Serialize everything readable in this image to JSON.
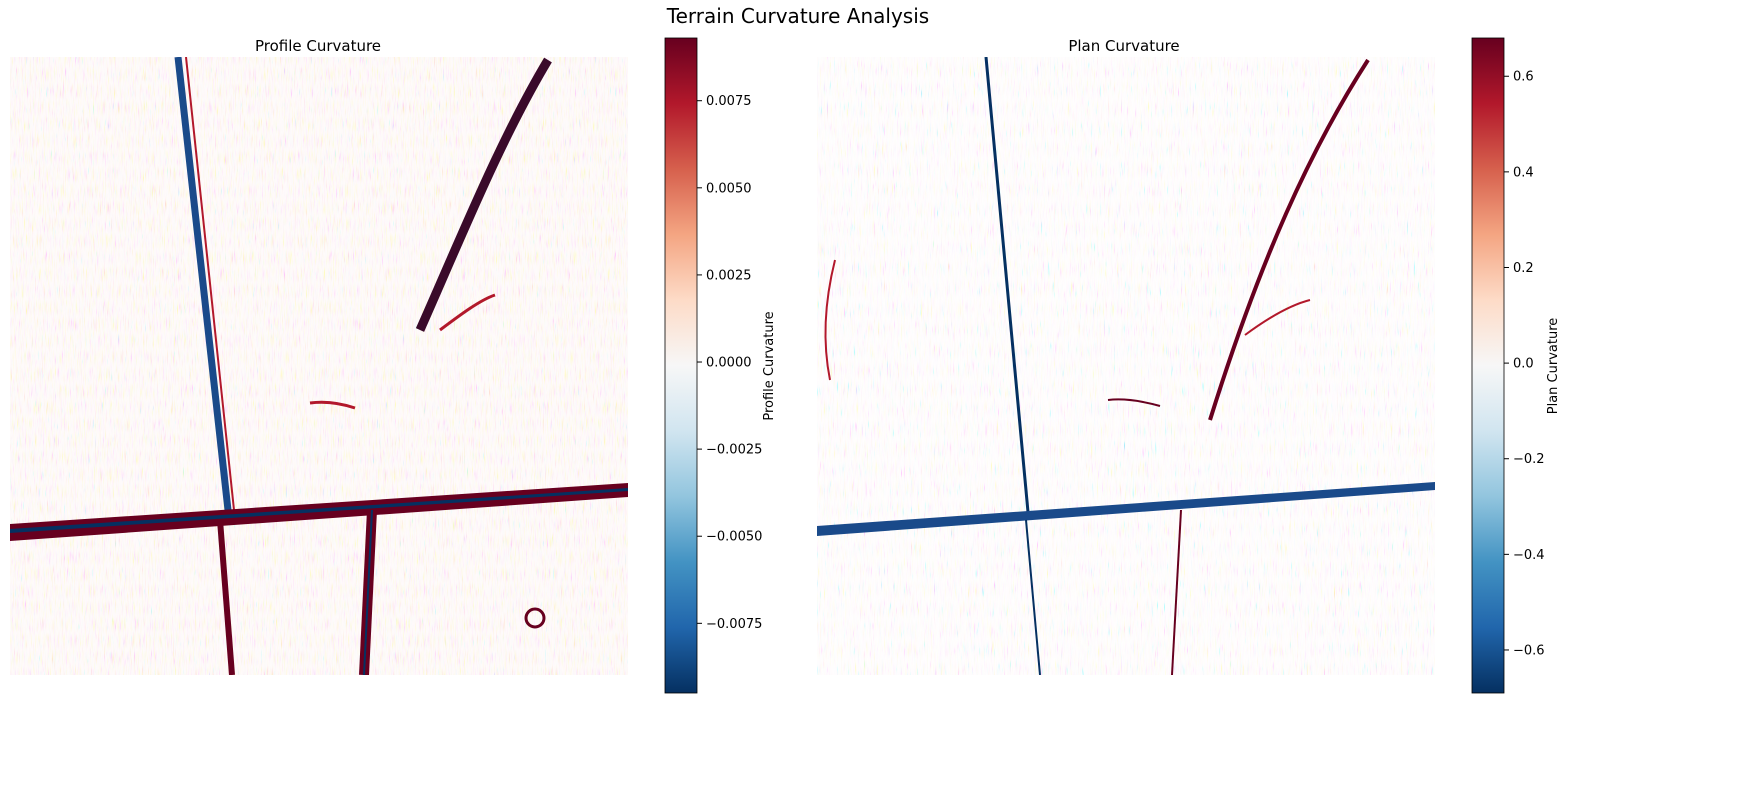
{
  "figure": {
    "title": "Terrain Curvature Analysis"
  },
  "colors": {
    "cmap": [
      "#053061",
      "#2166ac",
      "#4393c3",
      "#92c5de",
      "#d1e5f0",
      "#f7f7f7",
      "#fddbc7",
      "#f4a582",
      "#d6604d",
      "#b2182b",
      "#67001f"
    ],
    "tick_text": "#000000",
    "axis_frame": "#000000"
  },
  "chart_data": [
    {
      "type": "heatmap",
      "title": "Profile Curvature",
      "colormap": "RdBu_r",
      "colorbar": {
        "label": "Profile Curvature",
        "range": [
          -0.0095,
          0.0093
        ],
        "ticks": [
          0.0075,
          0.005,
          0.0025,
          0.0,
          -0.0025,
          -0.005,
          -0.0075
        ],
        "tick_labels": [
          "0.0075",
          "0.0050",
          "0.0025",
          "0.0000",
          "−0.0025",
          "−0.0050",
          "−0.0075"
        ]
      },
      "axes_visible": false
    },
    {
      "type": "heatmap",
      "title": "Plan Curvature",
      "colormap": "RdBu_r",
      "colorbar": {
        "label": "Plan Curvature",
        "range": [
          -0.69,
          0.68
        ],
        "ticks": [
          0.6,
          0.4,
          0.2,
          0.0,
          -0.2,
          -0.4,
          -0.6
        ],
        "tick_labels": [
          "0.6",
          "0.4",
          "0.2",
          "0.0",
          "−0.2",
          "−0.4",
          "−0.6"
        ]
      },
      "axes_visible": false
    }
  ]
}
